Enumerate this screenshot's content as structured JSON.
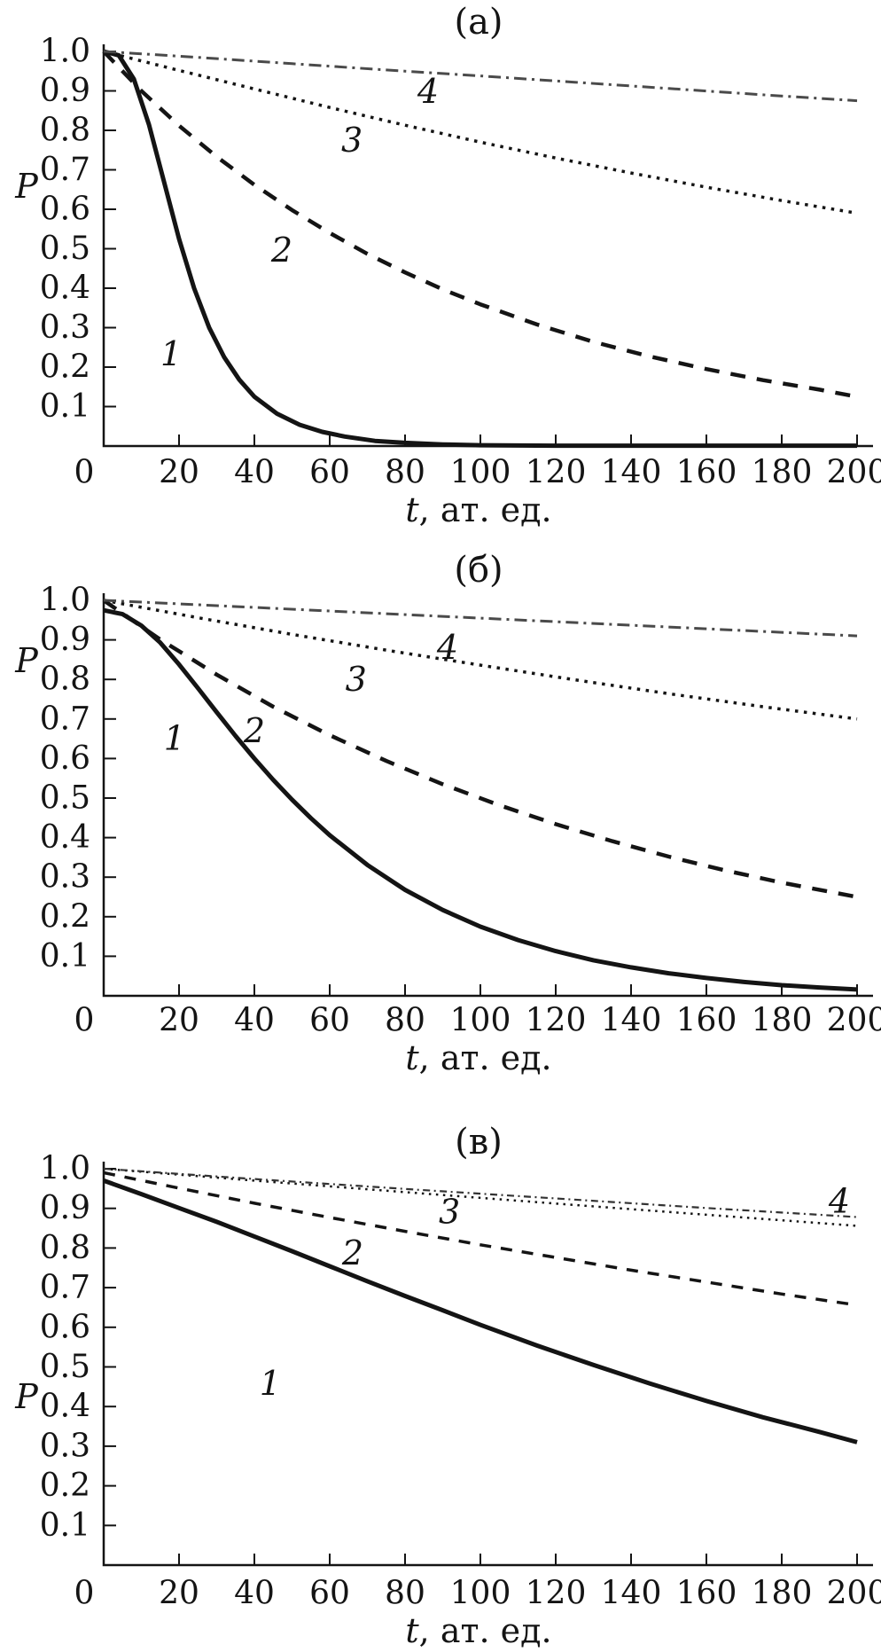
{
  "figure": {
    "background": "#ffffff",
    "ink": "#141414",
    "dashdot_color": "#4a4a4a",
    "ylabel": "P",
    "xlabel": "t, ат. ед."
  },
  "chart_data": [
    {
      "type": "line",
      "title": "(а)",
      "xlabel": "t, ат. ед.",
      "ylabel": "P",
      "xlim": [
        0,
        200
      ],
      "ylim": [
        0,
        1.0
      ],
      "x_ticks": [
        0,
        20,
        40,
        60,
        80,
        100,
        120,
        140,
        160,
        180,
        200
      ],
      "y_ticks": [
        0.1,
        0.2,
        0.3,
        0.4,
        0.5,
        0.6,
        0.7,
        0.8,
        0.9,
        1.0
      ],
      "grid": false,
      "legend": "inline italic numerals next to curves",
      "series": [
        {
          "name": "1",
          "style": "solid",
          "width": 5,
          "color": "#141414",
          "points": [
            [
              0,
              1.0
            ],
            [
              4,
              0.99
            ],
            [
              8,
              0.93
            ],
            [
              12,
              0.815
            ],
            [
              16,
              0.67
            ],
            [
              20,
              0.525
            ],
            [
              24,
              0.4
            ],
            [
              28,
              0.3
            ],
            [
              32,
              0.225
            ],
            [
              36,
              0.168
            ],
            [
              40,
              0.125
            ],
            [
              46,
              0.082
            ],
            [
              52,
              0.054
            ],
            [
              58,
              0.036
            ],
            [
              64,
              0.024
            ],
            [
              72,
              0.013
            ],
            [
              80,
              0.008
            ],
            [
              90,
              0.004
            ],
            [
              100,
              0.002
            ],
            [
              120,
              0.001
            ],
            [
              200,
              0.001
            ]
          ],
          "label_at": {
            "t": 17.9,
            "p": 0.234
          }
        },
        {
          "name": "2",
          "style": "dashed",
          "width": 4.5,
          "color": "#141414",
          "dash": "17,13",
          "points": [
            [
              0,
              1.0
            ],
            [
              10,
              0.9
            ],
            [
              20,
              0.812
            ],
            [
              30,
              0.733
            ],
            [
              40,
              0.662
            ],
            [
              50,
              0.598
            ],
            [
              60,
              0.54
            ],
            [
              70,
              0.487
            ],
            [
              80,
              0.44
            ],
            [
              90,
              0.397
            ],
            [
              100,
              0.359
            ],
            [
              115,
              0.308
            ],
            [
              130,
              0.264
            ],
            [
              145,
              0.227
            ],
            [
              160,
              0.195
            ],
            [
              175,
              0.167
            ],
            [
              190,
              0.143
            ],
            [
              200,
              0.125
            ]
          ],
          "label_at": {
            "t": 47.3,
            "p": 0.497
          }
        },
        {
          "name": "3",
          "style": "dotted",
          "width": 3.5,
          "color": "#141414",
          "dash": "3.5,6.5",
          "points": [
            [
              0,
              1.0
            ],
            [
              20,
              0.952
            ],
            [
              40,
              0.905
            ],
            [
              60,
              0.858
            ],
            [
              80,
              0.813
            ],
            [
              100,
              0.77
            ],
            [
              120,
              0.73
            ],
            [
              140,
              0.692
            ],
            [
              160,
              0.656
            ],
            [
              180,
              0.622
            ],
            [
              200,
              0.59
            ]
          ],
          "label_at": {
            "t": 65.9,
            "p": 0.775
          }
        },
        {
          "name": "4",
          "style": "dashdot",
          "width": 3,
          "color": "#4a4a4a",
          "dash": "14,6,3,6",
          "points": [
            [
              0,
              1.0
            ],
            [
              25,
              0.985
            ],
            [
              50,
              0.969
            ],
            [
              75,
              0.953
            ],
            [
              100,
              0.938
            ],
            [
              125,
              0.922
            ],
            [
              150,
              0.906
            ],
            [
              175,
              0.89
            ],
            [
              200,
              0.875
            ]
          ],
          "label_at": {
            "t": 86.1,
            "p": 0.899
          }
        }
      ]
    },
    {
      "type": "line",
      "title": "(б)",
      "xlabel": "t, ат. ед.",
      "ylabel": "P",
      "xlim": [
        0,
        200
      ],
      "ylim": [
        0,
        1.0
      ],
      "x_ticks": [
        0,
        20,
        40,
        60,
        80,
        100,
        120,
        140,
        160,
        180,
        200
      ],
      "y_ticks": [
        0.1,
        0.2,
        0.3,
        0.4,
        0.5,
        0.6,
        0.7,
        0.8,
        0.9,
        1.0
      ],
      "grid": false,
      "legend": "inline italic numerals next to curves",
      "series": [
        {
          "name": "1",
          "style": "solid",
          "width": 5,
          "color": "#141414",
          "points": [
            [
              0,
              0.975
            ],
            [
              5,
              0.965
            ],
            [
              10,
              0.936
            ],
            [
              15,
              0.893
            ],
            [
              20,
              0.838
            ],
            [
              25,
              0.778
            ],
            [
              30,
              0.717
            ],
            [
              35,
              0.657
            ],
            [
              40,
              0.6
            ],
            [
              45,
              0.546
            ],
            [
              50,
              0.496
            ],
            [
              55,
              0.449
            ],
            [
              60,
              0.406
            ],
            [
              70,
              0.331
            ],
            [
              80,
              0.268
            ],
            [
              90,
              0.217
            ],
            [
              100,
              0.175
            ],
            [
              110,
              0.141
            ],
            [
              120,
              0.113
            ],
            [
              130,
              0.09
            ],
            [
              140,
              0.072
            ],
            [
              150,
              0.057
            ],
            [
              160,
              0.045
            ],
            [
              170,
              0.035
            ],
            [
              180,
              0.027
            ],
            [
              190,
              0.021
            ],
            [
              200,
              0.016
            ]
          ],
          "label_at": {
            "t": 18.8,
            "p": 0.651
          }
        },
        {
          "name": "2",
          "style": "dashed",
          "width": 4.5,
          "color": "#141414",
          "dash": "17,13",
          "points": [
            [
              0,
              1.0
            ],
            [
              15,
              0.901
            ],
            [
              30,
              0.812
            ],
            [
              45,
              0.731
            ],
            [
              60,
              0.659
            ],
            [
              75,
              0.594
            ],
            [
              90,
              0.535
            ],
            [
              105,
              0.482
            ],
            [
              120,
              0.434
            ],
            [
              135,
              0.391
            ],
            [
              150,
              0.352
            ],
            [
              165,
              0.317
            ],
            [
              180,
              0.286
            ],
            [
              200,
              0.25
            ]
          ],
          "label_at": {
            "t": 40.0,
            "p": 0.67
          }
        },
        {
          "name": "3",
          "style": "dotted",
          "width": 3.5,
          "color": "#141414",
          "dash": "3.5,6.5",
          "points": [
            [
              0,
              1.0
            ],
            [
              25,
              0.956
            ],
            [
              50,
              0.914
            ],
            [
              75,
              0.874
            ],
            [
              100,
              0.836
            ],
            [
              125,
              0.799
            ],
            [
              150,
              0.764
            ],
            [
              175,
              0.731
            ],
            [
              200,
              0.7
            ]
          ],
          "label_at": {
            "t": 67.0,
            "p": 0.8
          }
        },
        {
          "name": "4",
          "style": "dashdot",
          "width": 3,
          "color": "#4a4a4a",
          "dash": "14,6,3,6",
          "points": [
            [
              0,
              1.0
            ],
            [
              40,
              0.982
            ],
            [
              80,
              0.964
            ],
            [
              120,
              0.946
            ],
            [
              160,
              0.928
            ],
            [
              200,
              0.91
            ]
          ],
          "label_at": {
            "t": 91.3,
            "p": 0.881
          }
        }
      ]
    },
    {
      "type": "line",
      "title": "(в)",
      "xlabel": "t, ат. ед.",
      "ylabel": "P",
      "xlim": [
        0,
        200
      ],
      "ylim": [
        0,
        1.0
      ],
      "x_ticks": [
        0,
        20,
        40,
        60,
        80,
        100,
        120,
        140,
        160,
        180,
        200
      ],
      "y_ticks": [
        0.1,
        0.2,
        0.3,
        0.4,
        0.5,
        0.6,
        0.7,
        0.8,
        0.9,
        1.0
      ],
      "grid": false,
      "legend": "inline italic numerals next to curves",
      "series": [
        {
          "name": "1",
          "style": "solid",
          "width": 5,
          "color": "#141414",
          "points": [
            [
              0,
              0.97
            ],
            [
              10,
              0.936
            ],
            [
              20,
              0.901
            ],
            [
              30,
              0.866
            ],
            [
              40,
              0.829
            ],
            [
              50,
              0.792
            ],
            [
              60,
              0.754
            ],
            [
              70,
              0.716
            ],
            [
              80,
              0.679
            ],
            [
              90,
              0.643
            ],
            [
              100,
              0.606
            ],
            [
              115,
              0.554
            ],
            [
              130,
              0.505
            ],
            [
              145,
              0.458
            ],
            [
              160,
              0.414
            ],
            [
              175,
              0.373
            ],
            [
              190,
              0.336
            ],
            [
              200,
              0.31
            ]
          ],
          "label_at": {
            "t": 44.2,
            "p": 0.459
          }
        },
        {
          "name": "2",
          "style": "dashed",
          "width": 3.5,
          "color": "#141414",
          "dash": "13,11",
          "points": [
            [
              0,
              0.99
            ],
            [
              20,
              0.951
            ],
            [
              40,
              0.913
            ],
            [
              60,
              0.877
            ],
            [
              80,
              0.842
            ],
            [
              100,
              0.808
            ],
            [
              120,
              0.776
            ],
            [
              140,
              0.744
            ],
            [
              160,
              0.714
            ],
            [
              180,
              0.684
            ],
            [
              200,
              0.656
            ]
          ],
          "label_at": {
            "t": 66.1,
            "p": 0.787
          }
        },
        {
          "name": "3",
          "style": "dotted",
          "width": 2.5,
          "color": "#141414",
          "dash": "2.5,5.5",
          "points": [
            [
              0,
              1.0
            ],
            [
              40,
              0.97
            ],
            [
              80,
              0.941
            ],
            [
              120,
              0.912
            ],
            [
              160,
              0.884
            ],
            [
              200,
              0.856
            ]
          ],
          "label_at": {
            "t": 91.8,
            "p": 0.892
          }
        },
        {
          "name": "4",
          "style": "dashdot",
          "width": 2.2,
          "color": "#333333",
          "dash": "8,4.5,2,4.5",
          "points": [
            [
              0,
              1.0
            ],
            [
              40,
              0.974
            ],
            [
              80,
              0.949
            ],
            [
              120,
              0.925
            ],
            [
              160,
              0.901
            ],
            [
              200,
              0.878
            ]
          ],
          "label_at": {
            "t": 195.3,
            "p": 0.918
          }
        }
      ]
    }
  ]
}
